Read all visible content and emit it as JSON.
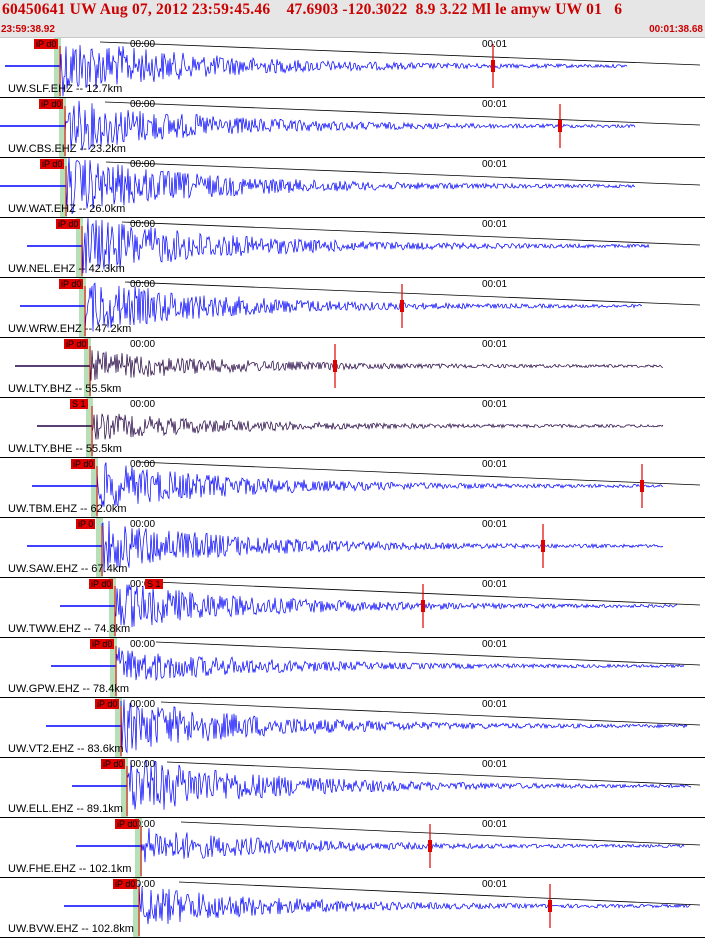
{
  "header": {
    "title": "60450641 UW Aug 07, 2012 23:59:45.46    47.6903 -120.3022  8.9 3.22 Ml le amyw UW 01   6",
    "start_time": "23:59:38.92",
    "end_time": "00:01:38.68"
  },
  "tick_labels": {
    "t0": "00:00",
    "t1": "00:01"
  },
  "colors": {
    "trace_vertical": "#0000ff",
    "trace_horizontal": "#200040",
    "pick_flag": "#e00000",
    "pick_window": "#b8e0b8",
    "coda_line": "#000000",
    "header_text": "#cc0000"
  },
  "traces": [
    {
      "station": "UW.SLF.EHZ -- 12.7km",
      "pick": "iP d0",
      "pick2": "",
      "color": "vertical",
      "p_frac": 0.085,
      "end_frac": 0.89,
      "amp_frac": 1.0,
      "s_frac": 0.7,
      "coda": true
    },
    {
      "station": "UW.CBS.EHZ -- 23.2km",
      "pick": "iP d0",
      "pick2": "",
      "color": "vertical",
      "p_frac": 0.092,
      "end_frac": 0.9,
      "amp_frac": 0.9,
      "s_frac": 0.795,
      "coda": true
    },
    {
      "station": "UW.WAT.EHZ -- 26.0km",
      "pick": "iP d0",
      "pick2": "",
      "color": "vertical",
      "p_frac": 0.093,
      "end_frac": 0.9,
      "amp_frac": 1.0,
      "s_frac": null,
      "coda": true
    },
    {
      "station": "UW.NEL.EHZ -- 42.3km",
      "pick": "iP d0",
      "pick2": "",
      "color": "vertical",
      "p_frac": 0.116,
      "end_frac": 0.92,
      "amp_frac": 1.0,
      "s_frac": null,
      "coda": true
    },
    {
      "station": "UW.WRW.EHZ -- 47.2km",
      "pick": "iP d0",
      "pick2": "",
      "color": "vertical",
      "p_frac": 0.12,
      "end_frac": 0.91,
      "amp_frac": 0.9,
      "s_frac": 0.57,
      "coda": true
    },
    {
      "station": "UW.LTY.BHZ -- 55.5km",
      "pick": "iP d0",
      "pick2": "",
      "color": "horizontal",
      "p_frac": 0.128,
      "end_frac": 0.94,
      "amp_frac": 0.5,
      "s_frac": 0.475,
      "coda": false
    },
    {
      "station": "UW.LTY.BHE -- 55.5km",
      "pick": "",
      "pick2": "S 1",
      "color": "horizontal",
      "p_frac": 0.13,
      "end_frac": 0.94,
      "amp_frac": 0.45,
      "s_frac": null,
      "coda": false
    },
    {
      "station": "UW.TBM.EHZ -- 62.0km",
      "pick": "iP d0",
      "pick2": "",
      "color": "vertical",
      "p_frac": 0.137,
      "end_frac": 0.94,
      "amp_frac": 0.8,
      "s_frac": 0.91,
      "coda": true
    },
    {
      "station": "UW.SAW.EHZ -- 67.4km",
      "pick": "iP 0",
      "pick2": "",
      "color": "vertical",
      "p_frac": 0.144,
      "end_frac": 0.94,
      "amp_frac": 0.85,
      "s_frac": 0.77,
      "coda": false
    },
    {
      "station": "UW.TWW.EHZ -- 74.8km",
      "pick": "iP d0",
      "pick2": "S 1",
      "color": "vertical",
      "p_frac": 0.163,
      "end_frac": 0.96,
      "amp_frac": 0.8,
      "s_frac": 0.6,
      "coda": true
    },
    {
      "station": "UW.GPW.EHZ -- 78.4km",
      "pick": "iP d0",
      "pick2": "",
      "color": "vertical",
      "p_frac": 0.165,
      "end_frac": 0.97,
      "amp_frac": 0.6,
      "s_frac": null,
      "coda": true
    },
    {
      "station": "UW.VT2.EHZ -- 83.6km",
      "pick": "iP d0",
      "pick2": "",
      "color": "vertical",
      "p_frac": 0.172,
      "end_frac": 0.975,
      "amp_frac": 0.9,
      "s_frac": null,
      "coda": true
    },
    {
      "station": "UW.ELL.EHZ -- 89.1km",
      "pick": "iP d0",
      "pick2": "",
      "color": "vertical",
      "p_frac": 0.18,
      "end_frac": 0.98,
      "amp_frac": 1.0,
      "s_frac": null,
      "coda": true
    },
    {
      "station": "UW.FHE.EHZ -- 102.1km",
      "pick": "iP d0",
      "pick2": "",
      "color": "vertical",
      "p_frac": 0.2,
      "end_frac": 0.97,
      "amp_frac": 0.6,
      "s_frac": 0.61,
      "coda": true
    },
    {
      "station": "UW.BVW.EHZ -- 102.8km",
      "pick": "iP d0",
      "pick2": "",
      "color": "vertical",
      "p_frac": 0.197,
      "end_frac": 0.98,
      "amp_frac": 0.7,
      "s_frac": 0.78,
      "coda": true
    }
  ]
}
